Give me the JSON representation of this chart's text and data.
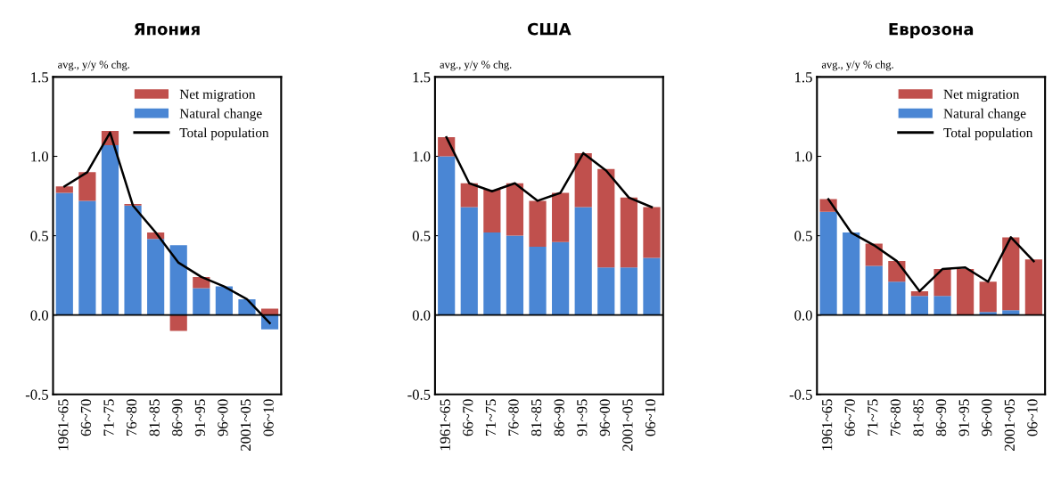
{
  "chart_data": [
    {
      "type": "bar",
      "title": "Япония",
      "ref_lines": [
        {
          "axis": "y",
          "value": 0,
          "color": "#000000"
        }
      ],
      "ylabel": "avg., y/y % chg.",
      "stacked": true,
      "legend": "top right",
      "grid": false,
      "categories": [
        "1961~65",
        "66~70",
        "71~75",
        "76~80",
        "81~85",
        "86~90",
        "91~95",
        "96~00",
        "2001~05",
        "06~10"
      ],
      "ylim": [
        -0.5,
        1.5
      ],
      "yticks": [
        {
          "value": -0.5,
          "label": "-0.5"
        },
        {
          "value": 0,
          "label": "0.0"
        },
        {
          "value": 0.5,
          "label": "0.5"
        },
        {
          "value": 1,
          "label": "1.0"
        },
        {
          "value": 1.5,
          "label": "1.5"
        }
      ],
      "series": [
        {
          "name": "Natural change",
          "color": "#4a86d4",
          "values": [
            0.77,
            0.72,
            1.07,
            0.69,
            0.48,
            0.44,
            0.17,
            0.18,
            0.1,
            -0.09
          ]
        },
        {
          "name": "Net migration",
          "color": "#c0504d",
          "values": [
            0.04,
            0.18,
            0.09,
            0.01,
            0.04,
            -0.1,
            0.07,
            0,
            0,
            0.04
          ]
        },
        {
          "name": "Total population",
          "type": "line",
          "color": "#000000",
          "values": [
            0.81,
            0.9,
            1.15,
            0.69,
            0.52,
            0.33,
            0.24,
            0.18,
            0.1,
            -0.05
          ]
        }
      ]
    },
    {
      "type": "bar",
      "title": "США",
      "ref_lines": [
        {
          "axis": "y",
          "value": 0,
          "color": "#000000"
        }
      ],
      "ylabel": "avg., y/y % chg.",
      "stacked": true,
      "grid": false,
      "categories": [
        "1961~65",
        "66~70",
        "71~75",
        "76~80",
        "81~85",
        "86~90",
        "91~95",
        "96~00",
        "2001~05",
        "06~10"
      ],
      "ylim": [
        -0.5,
        1.5
      ],
      "yticks": [
        {
          "value": -0.5,
          "label": "-0.5"
        },
        {
          "value": 0,
          "label": "0.0"
        },
        {
          "value": 0.5,
          "label": "0.5"
        },
        {
          "value": 1,
          "label": "1.0"
        },
        {
          "value": 1.5,
          "label": "1.5"
        }
      ],
      "series": [
        {
          "color": "#4a86d4",
          "values": [
            1.0,
            0.68,
            0.52,
            0.5,
            0.43,
            0.46,
            0.68,
            0.3,
            0.3,
            0.36
          ]
        },
        {
          "color": "#c0504d",
          "values": [
            0.12,
            0.15,
            0.27,
            0.33,
            0.29,
            0.31,
            0.34,
            0.62,
            0.44,
            0.32
          ]
        },
        {
          "type": "line",
          "color": "#000000",
          "values": [
            1.12,
            0.83,
            0.78,
            0.83,
            0.72,
            0.77,
            1.02,
            0.91,
            0.74,
            0.68
          ]
        }
      ]
    },
    {
      "type": "bar",
      "title": "Еврозона",
      "ref_lines": [
        {
          "axis": "y",
          "value": 0,
          "color": "#000000"
        }
      ],
      "ylabel": "avg., y/y % chg.",
      "stacked": true,
      "legend": "top right",
      "grid": false,
      "categories": [
        "1961~65",
        "66~70",
        "71~75",
        "76~80",
        "81~85",
        "86~90",
        "91~95",
        "96~00",
        "2001~05",
        "06~10"
      ],
      "ylim": [
        -0.5,
        1.5
      ],
      "yticks": [
        {
          "value": -0.5,
          "label": "-0.5"
        },
        {
          "value": 0,
          "label": "0.0"
        },
        {
          "value": 0.5,
          "label": "0.5"
        },
        {
          "value": 1,
          "label": "1.0"
        },
        {
          "value": 1.5,
          "label": "1.5"
        }
      ],
      "series": [
        {
          "name": "Natural change",
          "color": "#4a86d4",
          "values": [
            0.65,
            0.52,
            0.31,
            0.21,
            0.12,
            0.12,
            0,
            0.02,
            0.03,
            0
          ]
        },
        {
          "name": "Net migration",
          "color": "#c0504d",
          "values": [
            0.08,
            0,
            0.14,
            0.13,
            0.03,
            0.17,
            0.29,
            0.19,
            0.46,
            0.35
          ]
        },
        {
          "name": "Total population",
          "type": "line",
          "color": "#000000",
          "values": [
            0.73,
            0.52,
            0.44,
            0.34,
            0.15,
            0.29,
            0.3,
            0.21,
            0.49,
            0.34
          ]
        }
      ]
    }
  ]
}
